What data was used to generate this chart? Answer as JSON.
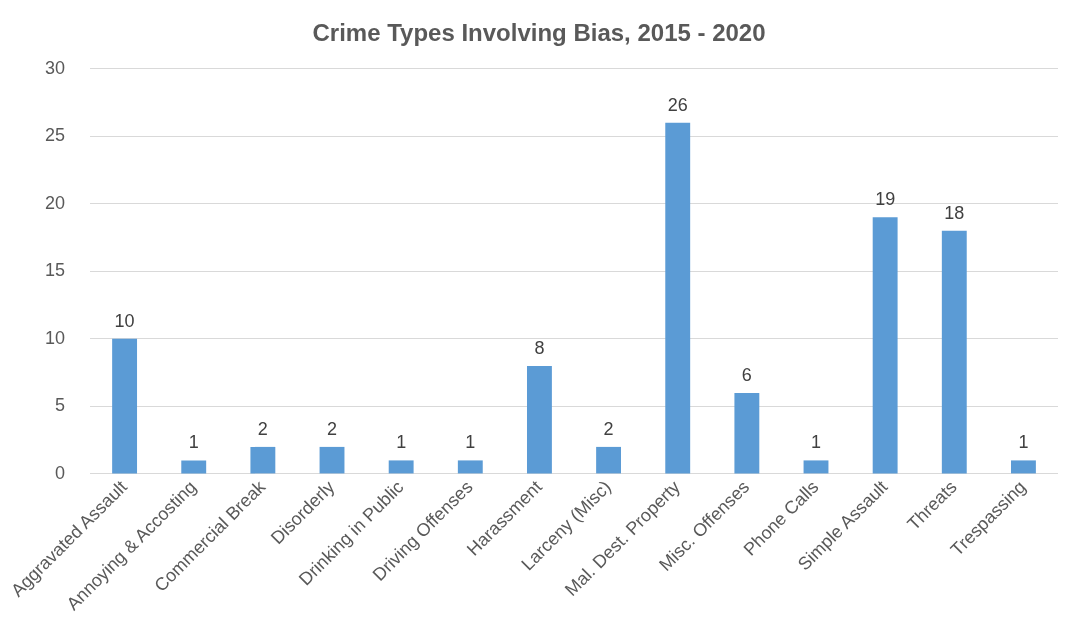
{
  "chart_data": {
    "type": "bar",
    "title": "Crime Types Involving Bias, 2015 - 2020",
    "categories": [
      "Aggravated Assault",
      "Annoying & Accosting",
      "Commercial Break",
      "Disorderly",
      "Drinking in Public",
      "Driving Offenses",
      "Harassment",
      "Larceny (Misc)",
      "Mal. Dest. Property",
      "Misc. Offenses",
      "Phone Calls",
      "Simple Assault",
      "Threats",
      "Trespassing"
    ],
    "values": [
      10,
      1,
      2,
      2,
      1,
      1,
      8,
      2,
      26,
      6,
      1,
      19,
      18,
      1
    ],
    "color": "#5b9bd5",
    "ylim": [
      0,
      30
    ],
    "yticks": [
      0,
      5,
      10,
      15,
      20,
      25,
      30
    ],
    "grid": "y",
    "data_labels": true,
    "legend": false
  }
}
